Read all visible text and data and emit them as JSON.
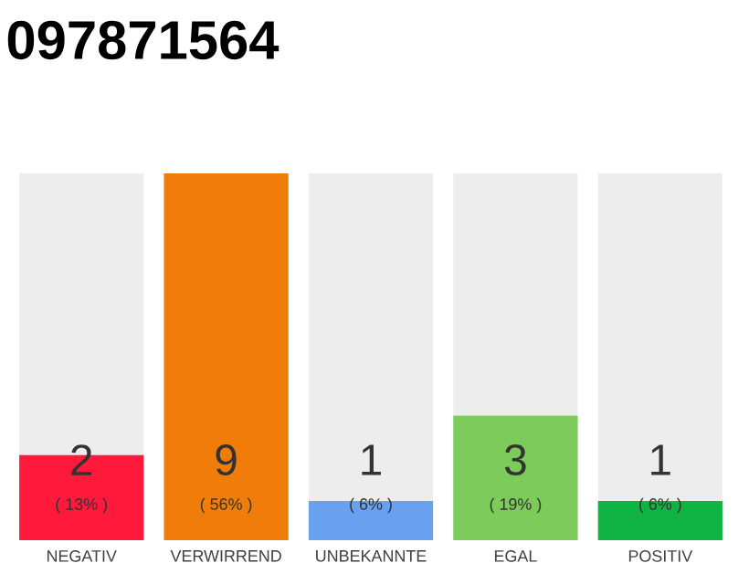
{
  "chart_data": {
    "type": "bar",
    "title": "097871564",
    "categories": [
      "NEGATIV",
      "VERWIRREND",
      "UNBEKANNTE",
      "EGAL",
      "POSITIV"
    ],
    "values": [
      13,
      56,
      6,
      19,
      6
    ],
    "colors": [
      "#ff1a3c",
      "#f07d0a",
      "#6aa0f0",
      "#7dcb5a",
      "#0fb443"
    ],
    "value_labels": [
      "( 13% )",
      "( 56% )",
      "( 6% )",
      "( 19% )",
      "( 6% )"
    ],
    "annotations": [
      "2",
      "9",
      "1",
      "3",
      "1"
    ]
  }
}
